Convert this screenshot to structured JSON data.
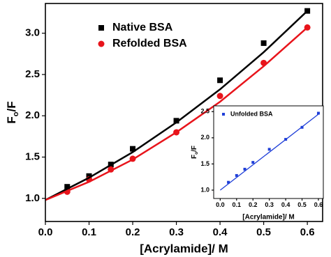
{
  "chart_data": [
    {
      "type": "scatter",
      "xlabel": "[Acrylamide]/ M",
      "ylabel": [
        "F",
        "o",
        "/F"
      ],
      "xlim": [
        0,
        0.635
      ],
      "ylim": [
        0.72,
        3.36
      ],
      "xticks": [
        {
          "value": 0,
          "label": "0.0"
        },
        0.1,
        0.2,
        0.3,
        0.4,
        0.5,
        0.6
      ],
      "yticks": [
        {
          "value": 1,
          "label": "1.0"
        },
        1.5,
        {
          "value": 2,
          "label": "2.0"
        },
        2.5,
        {
          "value": 3,
          "label": "3.0"
        }
      ],
      "series": [
        {
          "name": "Native BSA",
          "color": "#000000",
          "marker": "square",
          "x": [
            0.05,
            0.1,
            0.15,
            0.2,
            0.3,
            0.4,
            0.5,
            0.6
          ],
          "values": [
            1.14,
            1.27,
            1.41,
            1.6,
            1.94,
            2.43,
            2.88,
            3.27
          ]
        },
        {
          "name": "Refolded BSA",
          "color": "#e8141b",
          "marker": "circle",
          "x": [
            0.05,
            0.1,
            0.15,
            0.2,
            0.3,
            0.4,
            0.5,
            0.6
          ],
          "values": [
            1.08,
            1.23,
            1.35,
            1.48,
            1.8,
            2.24,
            2.64,
            3.07
          ]
        },
        {
          "color": "#000000",
          "marker": "none",
          "x": [
            0,
            0.1,
            0.2,
            0.3,
            0.4,
            0.5,
            0.6
          ],
          "values": [
            0.98,
            1.25,
            1.56,
            1.92,
            2.32,
            2.77,
            3.27
          ]
        },
        {
          "color": "#e8141b",
          "marker": "none",
          "x": [
            0,
            0.1,
            0.2,
            0.3,
            0.4,
            0.5,
            0.6
          ],
          "values": [
            0.98,
            1.2,
            1.47,
            1.8,
            2.17,
            2.6,
            3.07
          ]
        }
      ]
    },
    {
      "type": "scatter",
      "xlabel": "[Acrylamide]/ M",
      "ylabel": [
        "F",
        "o",
        "/F"
      ],
      "xlim": [
        -0.04,
        0.63
      ],
      "ylim": [
        0.84,
        2.61
      ],
      "xticks": [
        {
          "value": 0,
          "label": "0.0"
        },
        0.1,
        0.2,
        0.3,
        0.4,
        0.5,
        0.6
      ],
      "yticks": [
        {
          "value": 1,
          "label": "1.0"
        },
        1.5,
        {
          "value": 2,
          "label": "2.0"
        },
        2.5
      ],
      "series": [
        {
          "name": "Unfolded BSA",
          "color": "#1f3fd8",
          "marker": "square",
          "x": [
            0.05,
            0.1,
            0.15,
            0.2,
            0.3,
            0.4,
            0.5,
            0.6
          ],
          "values": [
            1.15,
            1.28,
            1.4,
            1.53,
            1.78,
            1.97,
            2.2,
            2.47
          ]
        },
        {
          "color": "#1f3fd8",
          "marker": "none",
          "x": [
            0,
            0.6
          ],
          "values": [
            1.0,
            2.45
          ]
        }
      ]
    }
  ]
}
